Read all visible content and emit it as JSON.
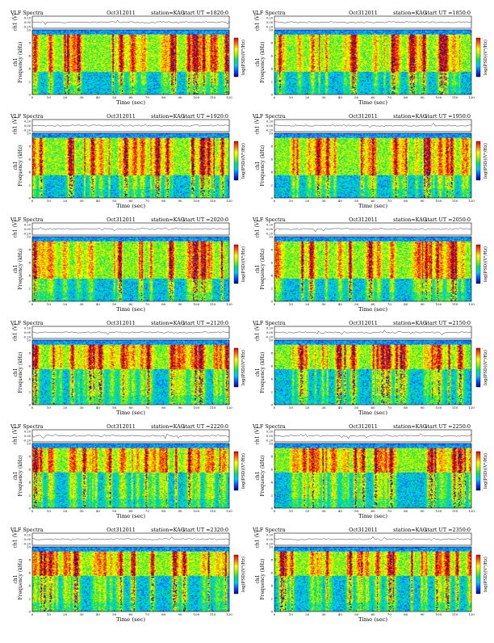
{
  "chart_data": [
    {
      "type": "heatmap",
      "title": "VLF Spectra",
      "date": "Oct312011",
      "station": "station=KAG",
      "start": "start  UT =1820:0",
      "xlabel": "Time  (sec)",
      "ylabel": "Frequency  (kHz)",
      "amp_label": "ch1 (V)",
      "panel_label": "ch1",
      "colorbar_label": "log(PSD)(V²/Hz)",
      "amp_ticks": [
        "0.20",
        "0.00",
        "-0.20"
      ],
      "yticks": [
        "0",
        "2",
        "4",
        "6",
        "8",
        "10"
      ],
      "xticks": [
        "0",
        "10",
        "20",
        "30",
        "40",
        "50",
        "60",
        "70",
        "80",
        "90",
        "100",
        "110",
        "120"
      ],
      "xlim": [
        0,
        120
      ],
      "ylim": [
        0,
        10
      ],
      "colorbar_ticks": [
        "-",
        "-"
      ],
      "colormap": [
        "#0000a0",
        "#0050ff",
        "#00c8ff",
        "#00e070",
        "#a0f000",
        "#ffff00",
        "#ff7000",
        "#e00000"
      ]
    },
    {
      "type": "heatmap",
      "title": "VLF Spectra",
      "date": "Oct312011",
      "station": "station=KAG",
      "start": "start  UT =1850:0",
      "xlabel": "Time  (sec)",
      "ylabel": "Frequency  (kHz)",
      "amp_label": "ch1 (V)",
      "panel_label": "ch1",
      "colorbar_label": "log(PSD)(V²/Hz)",
      "amp_ticks": [
        "0.20",
        "0.00",
        "-0.20"
      ],
      "yticks": [
        "0",
        "2",
        "4",
        "6",
        "8",
        "10"
      ],
      "xticks": [
        "0",
        "10",
        "20",
        "30",
        "40",
        "50",
        "60",
        "70",
        "80",
        "90",
        "100",
        "110",
        "120"
      ],
      "xlim": [
        0,
        120
      ],
      "ylim": [
        0,
        10
      ],
      "colorbar_ticks": [
        "-",
        "-"
      ],
      "colormap": [
        "#0000a0",
        "#0050ff",
        "#00c8ff",
        "#00e070",
        "#a0f000",
        "#ffff00",
        "#ff7000",
        "#e00000"
      ]
    },
    {
      "type": "heatmap",
      "title": "VLF Spectra",
      "date": "Oct312011",
      "station": "station=KAG",
      "start": "start  UT =1920:0",
      "xlabel": "Time  (sec)",
      "ylabel": "Frequency  (kHz)",
      "amp_label": "ch1 (V)",
      "panel_label": "ch1",
      "colorbar_label": "log(PSD)(V²/Hz)",
      "amp_ticks": [
        "0.20",
        "0.00",
        "-0.20"
      ],
      "yticks": [
        "0",
        "2",
        "4",
        "6",
        "8",
        "10"
      ],
      "xticks": [
        "0",
        "10",
        "20",
        "30",
        "40",
        "50",
        "60",
        "70",
        "80",
        "90",
        "100",
        "110",
        "120"
      ],
      "xlim": [
        0,
        120
      ],
      "ylim": [
        0,
        10
      ],
      "colorbar_ticks": [
        "-",
        "-"
      ],
      "colormap": [
        "#0000a0",
        "#0050ff",
        "#00c8ff",
        "#00e070",
        "#a0f000",
        "#ffff00",
        "#ff7000",
        "#e00000"
      ]
    },
    {
      "type": "heatmap",
      "title": "VLF Spectra",
      "date": "Oct312011",
      "station": "station=KAG",
      "start": "start  UT =1950:0",
      "xlabel": "Time  (sec)",
      "ylabel": "Frequency  (kHz)",
      "amp_label": "ch1 (V)",
      "panel_label": "ch1",
      "colorbar_label": "log(PSD)(V²/Hz)",
      "amp_ticks": [
        "0.20",
        "0.00",
        "-0.20"
      ],
      "yticks": [
        "0",
        "2",
        "4",
        "6",
        "8",
        "10"
      ],
      "xticks": [
        "0",
        "10",
        "20",
        "30",
        "40",
        "50",
        "60",
        "70",
        "80",
        "90",
        "100",
        "110",
        "120"
      ],
      "xlim": [
        0,
        120
      ],
      "ylim": [
        0,
        10
      ],
      "colorbar_ticks": [
        "-",
        "-"
      ],
      "colormap": [
        "#0000a0",
        "#0050ff",
        "#00c8ff",
        "#00e070",
        "#a0f000",
        "#ffff00",
        "#ff7000",
        "#e00000"
      ]
    },
    {
      "type": "heatmap",
      "title": "VLF Spectra",
      "date": "Oct312011",
      "station": "station=KAG",
      "start": "start  UT =2020:0",
      "xlabel": "Time  (sec)",
      "ylabel": "Frequency  (kHz)",
      "amp_label": "ch1 (V)",
      "panel_label": "ch1",
      "colorbar_label": "log(PSD)(V²/Hz)",
      "amp_ticks": [
        "0.20",
        "0.00",
        "-0.20"
      ],
      "yticks": [
        "0",
        "2",
        "4",
        "6",
        "8",
        "10"
      ],
      "xticks": [
        "0",
        "10",
        "20",
        "30",
        "40",
        "50",
        "60",
        "70",
        "80",
        "90",
        "100",
        "110",
        "120"
      ],
      "xlim": [
        0,
        120
      ],
      "ylim": [
        0,
        10
      ],
      "colorbar_ticks": [
        "-",
        "-"
      ],
      "colormap": [
        "#0000a0",
        "#0050ff",
        "#00c8ff",
        "#00e070",
        "#a0f000",
        "#ffff00",
        "#ff7000",
        "#e00000"
      ]
    },
    {
      "type": "heatmap",
      "title": "VLF Spectra",
      "date": "Oct312011",
      "station": "station=KAG",
      "start": "start  UT =2050:0",
      "xlabel": "Time  (sec)",
      "ylabel": "Frequency  (kHz)",
      "amp_label": "ch1 (V)",
      "panel_label": "ch1",
      "colorbar_label": "log(PSD)(V²/Hz)",
      "amp_ticks": [
        "0.20",
        "0.00",
        "-0.20"
      ],
      "yticks": [
        "0",
        "2",
        "4",
        "6",
        "8",
        "10"
      ],
      "xticks": [
        "0",
        "10",
        "20",
        "30",
        "40",
        "50",
        "60",
        "70",
        "80",
        "90",
        "100",
        "110",
        "120"
      ],
      "xlim": [
        0,
        120
      ],
      "ylim": [
        0,
        10
      ],
      "colorbar_ticks": [
        "-",
        "-"
      ],
      "colormap": [
        "#0000a0",
        "#0050ff",
        "#00c8ff",
        "#00e070",
        "#a0f000",
        "#ffff00",
        "#ff7000",
        "#e00000"
      ]
    },
    {
      "type": "heatmap",
      "title": "VLF Spectra",
      "date": "Oct312011",
      "station": "station=KAG",
      "start": "start  UT =2120:0",
      "xlabel": "Time  (sec)",
      "ylabel": "Frequency  (kHz)",
      "amp_label": "ch1 (V)",
      "panel_label": "ch1",
      "colorbar_label": "log(PSD)(V²/Hz)",
      "amp_ticks": [
        "0.20",
        "0.00",
        "-0.20"
      ],
      "yticks": [
        "0",
        "2",
        "4",
        "6",
        "8",
        "10"
      ],
      "xticks": [
        "0",
        "10",
        "20",
        "30",
        "40",
        "50",
        "60",
        "70",
        "80",
        "90",
        "100",
        "110",
        "120"
      ],
      "xlim": [
        0,
        120
      ],
      "ylim": [
        0,
        10
      ],
      "colorbar_ticks": [
        "-",
        "-"
      ],
      "colormap": [
        "#0000a0",
        "#0050ff",
        "#00c8ff",
        "#00e070",
        "#a0f000",
        "#ffff00",
        "#ff7000",
        "#e00000"
      ]
    },
    {
      "type": "heatmap",
      "title": "VLF Spectra",
      "date": "Oct312011",
      "station": "station=KAG",
      "start": "start  UT =2150:0",
      "xlabel": "Time  (sec)",
      "ylabel": "Frequency  (kHz)",
      "amp_label": "ch1 (V)",
      "panel_label": "ch1",
      "colorbar_label": "log(PSD)(V²/Hz)",
      "amp_ticks": [
        "0.20",
        "0.00",
        "-0.20"
      ],
      "yticks": [
        "0",
        "2",
        "4",
        "6",
        "8",
        "10"
      ],
      "xticks": [
        "0",
        "10",
        "20",
        "30",
        "40",
        "50",
        "60",
        "70",
        "80",
        "90",
        "100",
        "110",
        "120"
      ],
      "xlim": [
        0,
        120
      ],
      "ylim": [
        0,
        10
      ],
      "colorbar_ticks": [
        "-",
        "-"
      ],
      "colormap": [
        "#0000a0",
        "#0050ff",
        "#00c8ff",
        "#00e070",
        "#a0f000",
        "#ffff00",
        "#ff7000",
        "#e00000"
      ]
    },
    {
      "type": "heatmap",
      "title": "VLF Spectra",
      "date": "Oct312011",
      "station": "station=KAG",
      "start": "start  UT =2220:0",
      "xlabel": "Time  (sec)",
      "ylabel": "Frequency  (kHz)",
      "amp_label": "ch1 (V)",
      "panel_label": "ch1",
      "colorbar_label": "log(PSD)(V²/Hz)",
      "amp_ticks": [
        "0.20",
        "0.00",
        "-0.20"
      ],
      "yticks": [
        "0",
        "2",
        "4",
        "6",
        "8",
        "10"
      ],
      "xticks": [
        "0",
        "10",
        "20",
        "30",
        "40",
        "50",
        "60",
        "70",
        "80",
        "90",
        "100",
        "110",
        "120"
      ],
      "xlim": [
        0,
        120
      ],
      "ylim": [
        0,
        10
      ],
      "colorbar_ticks": [
        "-",
        "-"
      ],
      "colormap": [
        "#0000a0",
        "#0050ff",
        "#00c8ff",
        "#00e070",
        "#a0f000",
        "#ffff00",
        "#ff7000",
        "#e00000"
      ]
    },
    {
      "type": "heatmap",
      "title": "VLF Spectra",
      "date": "Oct312011",
      "station": "station=KAG",
      "start": "start  UT =2250:0",
      "xlabel": "Time  (sec)",
      "ylabel": "Frequency  (kHz)",
      "amp_label": "ch1 (V)",
      "panel_label": "ch1",
      "colorbar_label": "log(PSD)(V²/Hz)",
      "amp_ticks": [
        "0.20",
        "0.00",
        "-0.20"
      ],
      "yticks": [
        "0",
        "2",
        "4",
        "6",
        "8",
        "10"
      ],
      "xticks": [
        "0",
        "10",
        "20",
        "30",
        "40",
        "50",
        "60",
        "70",
        "80",
        "90",
        "100",
        "110",
        "120"
      ],
      "xlim": [
        0,
        120
      ],
      "ylim": [
        0,
        10
      ],
      "colorbar_ticks": [
        "-",
        "-"
      ],
      "colormap": [
        "#0000a0",
        "#0050ff",
        "#00c8ff",
        "#00e070",
        "#a0f000",
        "#ffff00",
        "#ff7000",
        "#e00000"
      ]
    },
    {
      "type": "heatmap",
      "title": "VLF Spectra",
      "date": "Oct312011",
      "station": "station=KAG",
      "start": "start  UT =2320:0",
      "xlabel": "Time  (sec)",
      "ylabel": "Frequency  (kHz)",
      "amp_label": "ch1 (V)",
      "panel_label": "ch1",
      "colorbar_label": "log(PSD)(V²/Hz)",
      "amp_ticks": [
        "0.20",
        "0.00",
        "-0.20"
      ],
      "yticks": [
        "0",
        "2",
        "4",
        "6",
        "8",
        "10"
      ],
      "xticks": [
        "0",
        "10",
        "20",
        "30",
        "40",
        "50",
        "60",
        "70",
        "80",
        "90",
        "100",
        "110",
        "120"
      ],
      "xlim": [
        0,
        120
      ],
      "ylim": [
        0,
        10
      ],
      "colorbar_ticks": [
        "-",
        "-"
      ],
      "colormap": [
        "#0000a0",
        "#0050ff",
        "#00c8ff",
        "#00e070",
        "#a0f000",
        "#ffff00",
        "#ff7000",
        "#e00000"
      ]
    },
    {
      "type": "heatmap",
      "title": "VLF Spectra",
      "date": "Oct312011",
      "station": "station=KAG",
      "start": "start  UT =2350:0",
      "xlabel": "Time  (sec)",
      "ylabel": "Frequency  (kHz)",
      "amp_label": "ch1 (V)",
      "panel_label": "ch1",
      "colorbar_label": "log(PSD)(V²/Hz)",
      "amp_ticks": [
        "0.20",
        "0.00",
        "-0.20"
      ],
      "yticks": [
        "0",
        "2",
        "4",
        "6",
        "8",
        "10"
      ],
      "xticks": [
        "0",
        "10",
        "20",
        "30",
        "40",
        "50",
        "60",
        "70",
        "80",
        "90",
        "100",
        "110",
        "120"
      ],
      "xlim": [
        0,
        120
      ],
      "ylim": [
        0,
        10
      ],
      "colorbar_ticks": [
        "-",
        "-"
      ],
      "colormap": [
        "#0000a0",
        "#0050ff",
        "#00c8ff",
        "#00e070",
        "#a0f000",
        "#ffff00",
        "#ff7000",
        "#e00000"
      ]
    }
  ]
}
